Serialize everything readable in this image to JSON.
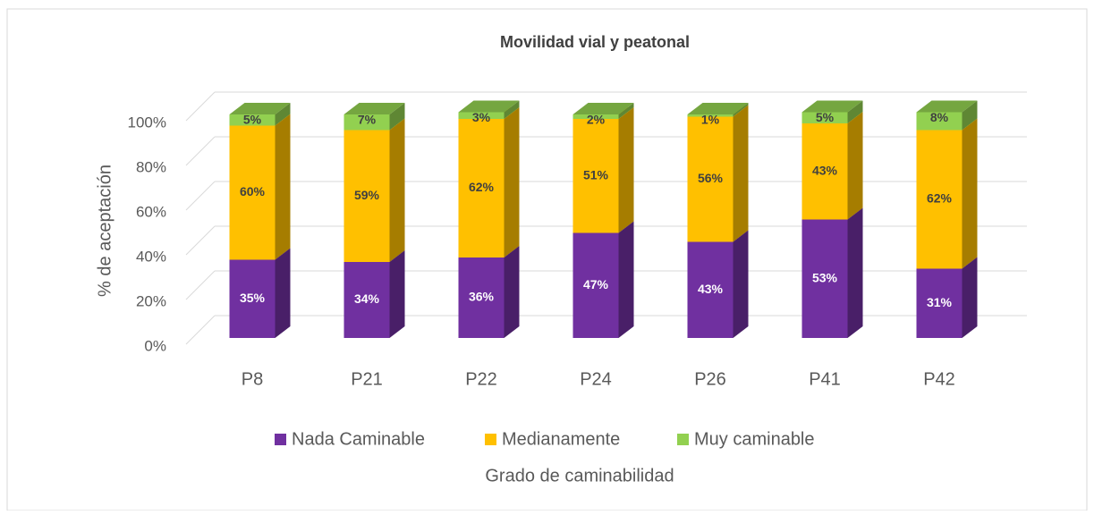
{
  "chart_data": {
    "type": "bar3d_stacked",
    "title": "Movilidad vial y peatonal",
    "x_label": "Grado de caminabilidad",
    "y_label": "% de aceptación",
    "categories": [
      "P8",
      "P21",
      "P22",
      "P24",
      "P26",
      "P41",
      "P42"
    ],
    "series": [
      {
        "name": "Nada Caminable",
        "color": "#7030a0",
        "values": [
          35,
          34,
          36,
          47,
          43,
          53,
          31
        ],
        "value_labels": [
          "35%",
          "34%",
          "36%",
          "47%",
          "43%",
          "53%",
          "31%"
        ]
      },
      {
        "name": "Medianamente",
        "color": "#ffc000",
        "values": [
          60,
          59,
          62,
          51,
          56,
          43,
          62
        ],
        "value_labels": [
          "60%",
          "59%",
          "62%",
          "51%",
          "56%",
          "43%",
          "62%"
        ]
      },
      {
        "name": "Muy caminable",
        "color": "#92d050",
        "values": [
          5,
          7,
          3,
          2,
          1,
          5,
          8
        ],
        "value_labels": [
          "5%",
          "7%",
          "3%",
          "2%",
          "1%",
          "5%",
          "8%"
        ]
      }
    ],
    "ylim": [
      0,
      100
    ],
    "yticks": [
      {
        "value": 0,
        "label": "0%"
      },
      {
        "value": 20,
        "label": "20%"
      },
      {
        "value": 40,
        "label": "40%"
      },
      {
        "value": 60,
        "label": "60%"
      },
      {
        "value": 80,
        "label": "80%"
      },
      {
        "value": 100,
        "label": "100%"
      }
    ],
    "grid": true,
    "legend": "bottom"
  }
}
